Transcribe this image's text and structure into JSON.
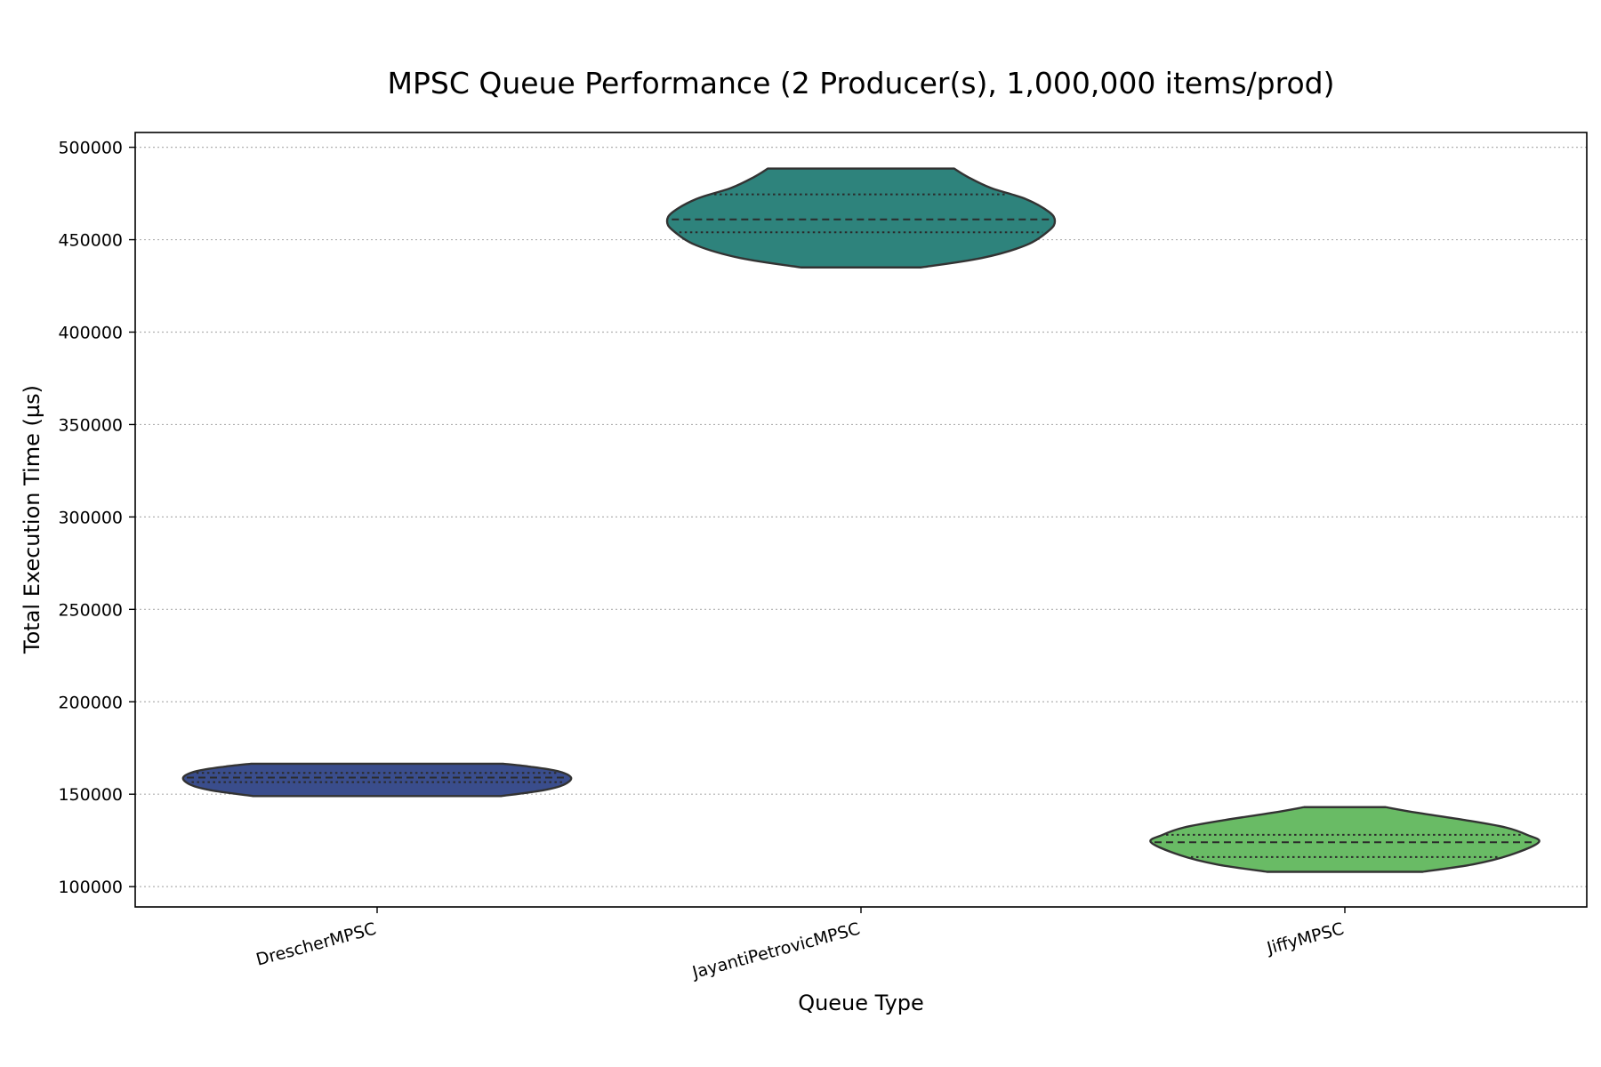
{
  "chart_data": {
    "type": "violin",
    "title": "MPSC Queue Performance (2 Producer(s), 1,000,000 items/prod)",
    "xlabel": "Queue Type",
    "ylabel": "Total Execution Time (µs)",
    "ylim": [
      89000,
      508000
    ],
    "yticks": [
      100000,
      150000,
      200000,
      250000,
      300000,
      350000,
      400000,
      450000,
      500000
    ],
    "ytick_labels": [
      "100000",
      "150000",
      "200000",
      "250000",
      "300000",
      "350000",
      "400000",
      "450000",
      "500000"
    ],
    "grid": "y-dotted",
    "categories": [
      "DrescherMPSC",
      "JayantiPetrovicMPSC",
      "JiffyMPSC"
    ],
    "series": [
      {
        "category": "DrescherMPSC",
        "color": "#3a4d8c",
        "min": 149000,
        "q1": 156500,
        "median": 159000,
        "q3": 161500,
        "max": 166500,
        "density": [
          [
            149000,
            0.64
          ],
          [
            152000,
            0.85
          ],
          [
            155000,
            0.96
          ],
          [
            159000,
            1.0
          ],
          [
            162500,
            0.93
          ],
          [
            165000,
            0.78
          ],
          [
            166500,
            0.65
          ]
        ]
      },
      {
        "category": "JayantiPetrovicMPSC",
        "color": "#2e837c",
        "min": 435000,
        "q1": 454000,
        "median": 461000,
        "q3": 474500,
        "max": 488500,
        "density": [
          [
            435000,
            0.31
          ],
          [
            440000,
            0.62
          ],
          [
            447000,
            0.85
          ],
          [
            455000,
            0.97
          ],
          [
            460000,
            1.0
          ],
          [
            465000,
            0.97
          ],
          [
            472000,
            0.85
          ],
          [
            478000,
            0.67
          ],
          [
            484000,
            0.55
          ],
          [
            488500,
            0.48
          ]
        ]
      },
      {
        "category": "JiffyMPSC",
        "color": "#69bb65",
        "min": 108000,
        "q1": 116000,
        "median": 124000,
        "q3": 128000,
        "max": 143000,
        "density": [
          [
            108000,
            0.4
          ],
          [
            112000,
            0.66
          ],
          [
            117000,
            0.85
          ],
          [
            124000,
            1.0
          ],
          [
            128000,
            0.94
          ],
          [
            132000,
            0.83
          ],
          [
            136000,
            0.62
          ],
          [
            140000,
            0.37
          ],
          [
            143000,
            0.21
          ]
        ]
      }
    ]
  }
}
